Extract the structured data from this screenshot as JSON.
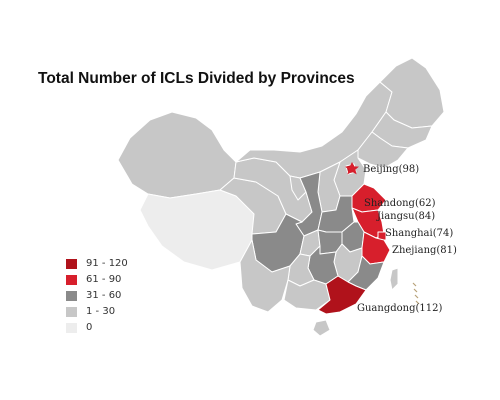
{
  "title": "Total Number of ICLs Divided by Provinces",
  "colors": {
    "c91_120": "#b0121b",
    "c61_90": "#d71f2c",
    "c31_60": "#8a8a8a",
    "c1_30": "#c7c7c7",
    "c0": "#ededed",
    "border": "#ffffff",
    "star": "#d71f2c"
  },
  "legend": [
    {
      "label": "91 - 120",
      "color": "#b0121b"
    },
    {
      "label": "61 - 90",
      "color": "#d71f2c"
    },
    {
      "label": "31 - 60",
      "color": "#8a8a8a"
    },
    {
      "label": "1 - 30",
      "color": "#c7c7c7"
    },
    {
      "label": "0",
      "color": "#ededed"
    }
  ],
  "provinces": [
    {
      "name": "Beijing",
      "value": 98,
      "label": "Beijing(98)"
    },
    {
      "name": "Shandong",
      "value": 62,
      "label": "Shandong(62)"
    },
    {
      "name": "Jiangsu",
      "value": 84,
      "label": "Jiangsu(84)"
    },
    {
      "name": "Shanghai",
      "value": 74,
      "label": "Shanghai(74)"
    },
    {
      "name": "Zhejiang",
      "value": 81,
      "label": "Zhejiang(81)"
    },
    {
      "name": "Guangdong",
      "value": 112,
      "label": "Guangdong(112)"
    }
  ]
}
